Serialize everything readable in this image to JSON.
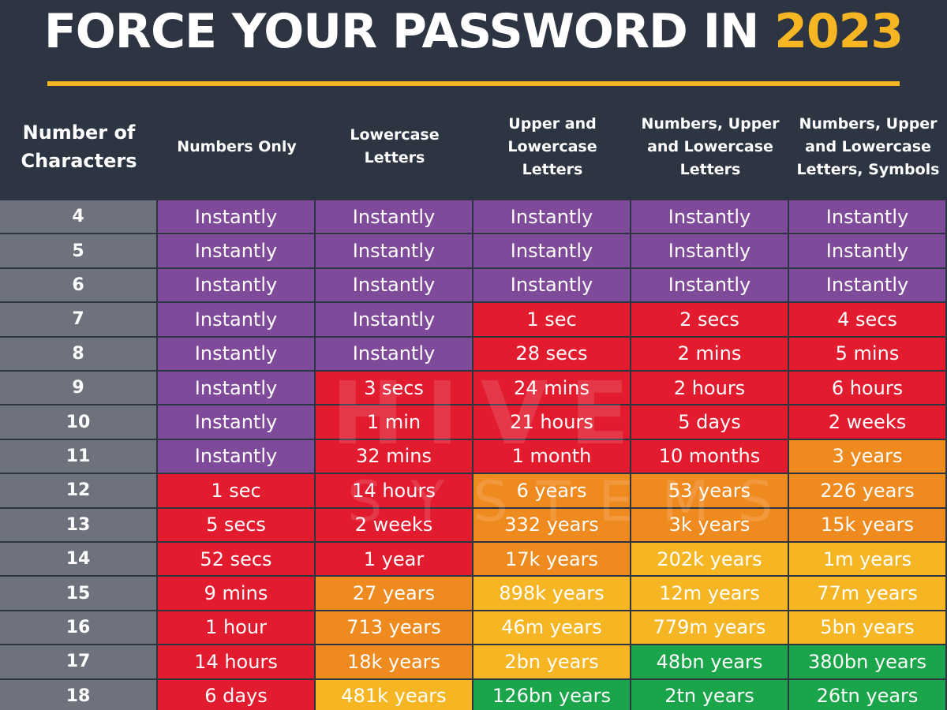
{
  "title": {
    "prefix": "FORCE YOUR PASSWORD IN ",
    "year": "2023"
  },
  "watermark": {
    "line1": "HIVE",
    "line2": "SYSTEMS"
  },
  "colors": {
    "background": "#2d3442",
    "accent": "#f6b623",
    "instantly": "#7f4a9a",
    "red": "#e21b2f",
    "orange": "#ef8a1f",
    "yellow": "#f6b623",
    "green": "#1aa54a",
    "number_column": "#6d727c"
  },
  "headers": [
    "Number of\nCharacters",
    "Numbers Only",
    "Lowercase\nLetters",
    "Upper and\nLowercase\nLetters",
    "Numbers, Upper\nand Lowercase\nLetters",
    "Numbers, Upper\nand Lowercase\nLetters, Symbols"
  ],
  "rows": [
    {
      "chars": "4",
      "cells": [
        [
          "Instantly",
          "purple"
        ],
        [
          "Instantly",
          "purple"
        ],
        [
          "Instantly",
          "purple"
        ],
        [
          "Instantly",
          "purple"
        ],
        [
          "Instantly",
          "purple"
        ]
      ]
    },
    {
      "chars": "5",
      "cells": [
        [
          "Instantly",
          "purple"
        ],
        [
          "Instantly",
          "purple"
        ],
        [
          "Instantly",
          "purple"
        ],
        [
          "Instantly",
          "purple"
        ],
        [
          "Instantly",
          "purple"
        ]
      ]
    },
    {
      "chars": "6",
      "cells": [
        [
          "Instantly",
          "purple"
        ],
        [
          "Instantly",
          "purple"
        ],
        [
          "Instantly",
          "purple"
        ],
        [
          "Instantly",
          "purple"
        ],
        [
          "Instantly",
          "purple"
        ]
      ]
    },
    {
      "chars": "7",
      "cells": [
        [
          "Instantly",
          "purple"
        ],
        [
          "Instantly",
          "purple"
        ],
        [
          "1 sec",
          "red"
        ],
        [
          "2 secs",
          "red"
        ],
        [
          "4 secs",
          "red"
        ]
      ]
    },
    {
      "chars": "8",
      "cells": [
        [
          "Instantly",
          "purple"
        ],
        [
          "Instantly",
          "purple"
        ],
        [
          "28 secs",
          "red"
        ],
        [
          "2 mins",
          "red"
        ],
        [
          "5 mins",
          "red"
        ]
      ]
    },
    {
      "chars": "9",
      "cells": [
        [
          "Instantly",
          "purple"
        ],
        [
          "3 secs",
          "red"
        ],
        [
          "24 mins",
          "red"
        ],
        [
          "2 hours",
          "red"
        ],
        [
          "6 hours",
          "red"
        ]
      ]
    },
    {
      "chars": "10",
      "cells": [
        [
          "Instantly",
          "purple"
        ],
        [
          "1 min",
          "red"
        ],
        [
          "21 hours",
          "red"
        ],
        [
          "5 days",
          "red"
        ],
        [
          "2 weeks",
          "red"
        ]
      ]
    },
    {
      "chars": "11",
      "cells": [
        [
          "Instantly",
          "purple"
        ],
        [
          "32 mins",
          "red"
        ],
        [
          "1 month",
          "red"
        ],
        [
          "10 months",
          "red"
        ],
        [
          "3 years",
          "orange"
        ]
      ]
    },
    {
      "chars": "12",
      "cells": [
        [
          "1 sec",
          "red"
        ],
        [
          "14 hours",
          "red"
        ],
        [
          "6 years",
          "orange"
        ],
        [
          "53 years",
          "orange"
        ],
        [
          "226 years",
          "orange"
        ]
      ]
    },
    {
      "chars": "13",
      "cells": [
        [
          "5 secs",
          "red"
        ],
        [
          "2 weeks",
          "red"
        ],
        [
          "332 years",
          "orange"
        ],
        [
          "3k years",
          "orange"
        ],
        [
          "15k years",
          "orange"
        ]
      ]
    },
    {
      "chars": "14",
      "cells": [
        [
          "52 secs",
          "red"
        ],
        [
          "1 year",
          "red"
        ],
        [
          "17k years",
          "orange"
        ],
        [
          "202k years",
          "yellow"
        ],
        [
          "1m years",
          "yellow"
        ]
      ]
    },
    {
      "chars": "15",
      "cells": [
        [
          "9 mins",
          "red"
        ],
        [
          "27 years",
          "orange"
        ],
        [
          "898k years",
          "yellow"
        ],
        [
          "12m years",
          "yellow"
        ],
        [
          "77m years",
          "yellow"
        ]
      ]
    },
    {
      "chars": "16",
      "cells": [
        [
          "1 hour",
          "red"
        ],
        [
          "713 years",
          "orange"
        ],
        [
          "46m years",
          "yellow"
        ],
        [
          "779m years",
          "yellow"
        ],
        [
          "5bn years",
          "yellow"
        ]
      ]
    },
    {
      "chars": "17",
      "cells": [
        [
          "14 hours",
          "red"
        ],
        [
          "18k years",
          "orange"
        ],
        [
          "2bn years",
          "yellow"
        ],
        [
          "48bn years",
          "green"
        ],
        [
          "380bn years",
          "green"
        ]
      ]
    },
    {
      "chars": "18",
      "cells": [
        [
          "6 days",
          "red"
        ],
        [
          "481k years",
          "yellow"
        ],
        [
          "126bn years",
          "green"
        ],
        [
          "2tn years",
          "green"
        ],
        [
          "26tn years",
          "green"
        ]
      ]
    }
  ]
}
